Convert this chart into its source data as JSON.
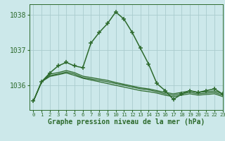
{
  "hours": [
    0,
    1,
    2,
    3,
    4,
    5,
    6,
    7,
    8,
    9,
    10,
    11,
    12,
    13,
    14,
    15,
    16,
    17,
    18,
    19,
    20,
    21,
    22,
    23
  ],
  "pressure_main": [
    1035.55,
    1036.1,
    1036.35,
    1036.55,
    1036.65,
    1036.55,
    1036.5,
    1037.2,
    1037.5,
    1037.75,
    1038.08,
    1037.88,
    1037.5,
    1037.05,
    1036.6,
    1036.05,
    1035.85,
    1035.6,
    1035.75,
    1035.85,
    1035.8,
    1035.85,
    1035.9,
    1035.75
  ],
  "pressure_line2": [
    1035.55,
    1036.1,
    1036.25,
    1036.3,
    1036.35,
    1036.28,
    1036.2,
    1036.15,
    1036.1,
    1036.05,
    1036.0,
    1035.95,
    1035.9,
    1035.85,
    1035.82,
    1035.78,
    1035.72,
    1035.68,
    1035.72,
    1035.76,
    1035.72,
    1035.74,
    1035.76,
    1035.68
  ],
  "pressure_line3": [
    1035.55,
    1036.1,
    1036.28,
    1036.32,
    1036.38,
    1036.32,
    1036.22,
    1036.18,
    1036.14,
    1036.1,
    1036.05,
    1036.0,
    1035.95,
    1035.9,
    1035.87,
    1035.82,
    1035.76,
    1035.72,
    1035.76,
    1035.8,
    1035.76,
    1035.78,
    1035.8,
    1035.72
  ],
  "pressure_line4": [
    1035.55,
    1036.1,
    1036.32,
    1036.36,
    1036.42,
    1036.36,
    1036.26,
    1036.22,
    1036.18,
    1036.14,
    1036.08,
    1036.03,
    1035.98,
    1035.93,
    1035.9,
    1035.85,
    1035.8,
    1035.76,
    1035.8,
    1035.84,
    1035.8,
    1035.82,
    1035.84,
    1035.76
  ],
  "line_color": "#2d6a2d",
  "bg_color": "#cce8ea",
  "grid_color": "#aaccce",
  "xlabel": "Graphe pression niveau de la mer (hPa)",
  "ylim": [
    1035.3,
    1038.3
  ],
  "yticks": [
    1036,
    1037,
    1038
  ],
  "xlim": [
    -0.5,
    23
  ],
  "xticks": [
    0,
    1,
    2,
    3,
    4,
    5,
    6,
    7,
    8,
    9,
    10,
    11,
    12,
    13,
    14,
    15,
    16,
    17,
    18,
    19,
    20,
    21,
    22,
    23
  ]
}
